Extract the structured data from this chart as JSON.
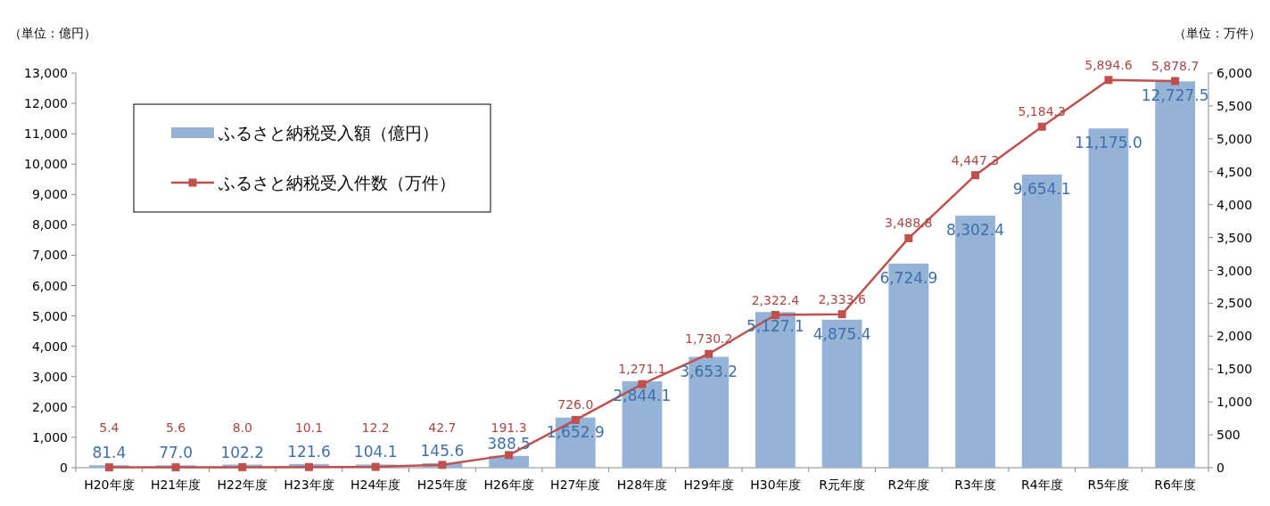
{
  "chart_data": {
    "type": "bar",
    "categories": [
      "H20年度",
      "H21年度",
      "H22年度",
      "H23年度",
      "H24年度",
      "H25年度",
      "H26年度",
      "H27年度",
      "H28年度",
      "H29年度",
      "H30年度",
      "R元年度",
      "R2年度",
      "R3年度",
      "R4年度",
      "R5年度",
      "R6年度"
    ],
    "series": [
      {
        "name": "ふるさと納税受入額（億円）",
        "color": "#95b3d7",
        "values": [
          81.4,
          77.0,
          102.2,
          121.6,
          104.1,
          145.6,
          388.5,
          1652.9,
          2844.1,
          3653.2,
          5127.1,
          4875.4,
          6724.9,
          8302.4,
          9654.1,
          11175.0,
          12727.5
        ],
        "value_labels": [
          "81.4",
          "77.0",
          "102.2",
          "121.6",
          "104.1",
          "145.6",
          "388.5",
          "1,652.9",
          "2,844.1",
          "3,653.2",
          "5,127.1",
          "4,875.4",
          "6,724.9",
          "8,302.4",
          "9,654.1",
          "11,175.0",
          "12,727.5"
        ]
      },
      {
        "name": "ふるさと納税受入件数（万件）",
        "type": "line",
        "axis": "y2",
        "color": "#c0504d",
        "marker": "square",
        "values": [
          5.4,
          5.6,
          8.0,
          10.1,
          12.2,
          42.7,
          191.3,
          726.0,
          1271.1,
          1730.2,
          2322.4,
          2333.6,
          3488.8,
          4447.3,
          5184.3,
          5894.6,
          5878.7
        ],
        "value_labels": [
          "5.4",
          "5.6",
          "8.0",
          "10.1",
          "12.2",
          "42.7",
          "191.3",
          "726.0",
          "1,271.1",
          "1,730.2",
          "2,322.4",
          "2,333.6",
          "3,488.8",
          "4,447.3",
          "5,184.3",
          "5,894.6",
          "5,878.7"
        ]
      }
    ],
    "ylim": [
      0,
      13000
    ],
    "yticks": [
      0,
      {
        "value": 1000,
        "label": "1,000"
      },
      {
        "value": 2000,
        "label": "2,000"
      },
      {
        "value": 3000,
        "label": "3,000"
      },
      {
        "value": 4000,
        "label": "4,000"
      },
      {
        "value": 5000,
        "label": "5,000"
      },
      {
        "value": 6000,
        "label": "6,000"
      },
      {
        "value": 7000,
        "label": "7,000"
      },
      {
        "value": 8000,
        "label": "8,000"
      },
      {
        "value": 9000,
        "label": "9,000"
      },
      {
        "value": 10000,
        "label": "10,000"
      },
      {
        "value": 11000,
        "label": "11,000"
      },
      {
        "value": 12000,
        "label": "12,000"
      },
      {
        "value": 13000,
        "label": "13,000"
      }
    ],
    "y2lim": [
      0,
      6000
    ],
    "y2ticks": [
      0,
      500,
      {
        "value": 1000,
        "label": "1,000"
      },
      {
        "value": 1500,
        "label": "1,500"
      },
      {
        "value": 2000,
        "label": "2,000"
      },
      {
        "value": 2500,
        "label": "2,500"
      },
      {
        "value": 3000,
        "label": "3,000"
      },
      {
        "value": 3500,
        "label": "3,500"
      },
      {
        "value": 4000,
        "label": "4,000"
      },
      {
        "value": 4500,
        "label": "4,500"
      },
      {
        "value": 5000,
        "label": "5,000"
      },
      {
        "value": 5500,
        "label": "5,500"
      },
      {
        "value": 6000,
        "label": "6,000"
      }
    ],
    "legend": "top left",
    "annotations": [
      "（単位：億円）",
      "（単位：万件）"
    ]
  }
}
